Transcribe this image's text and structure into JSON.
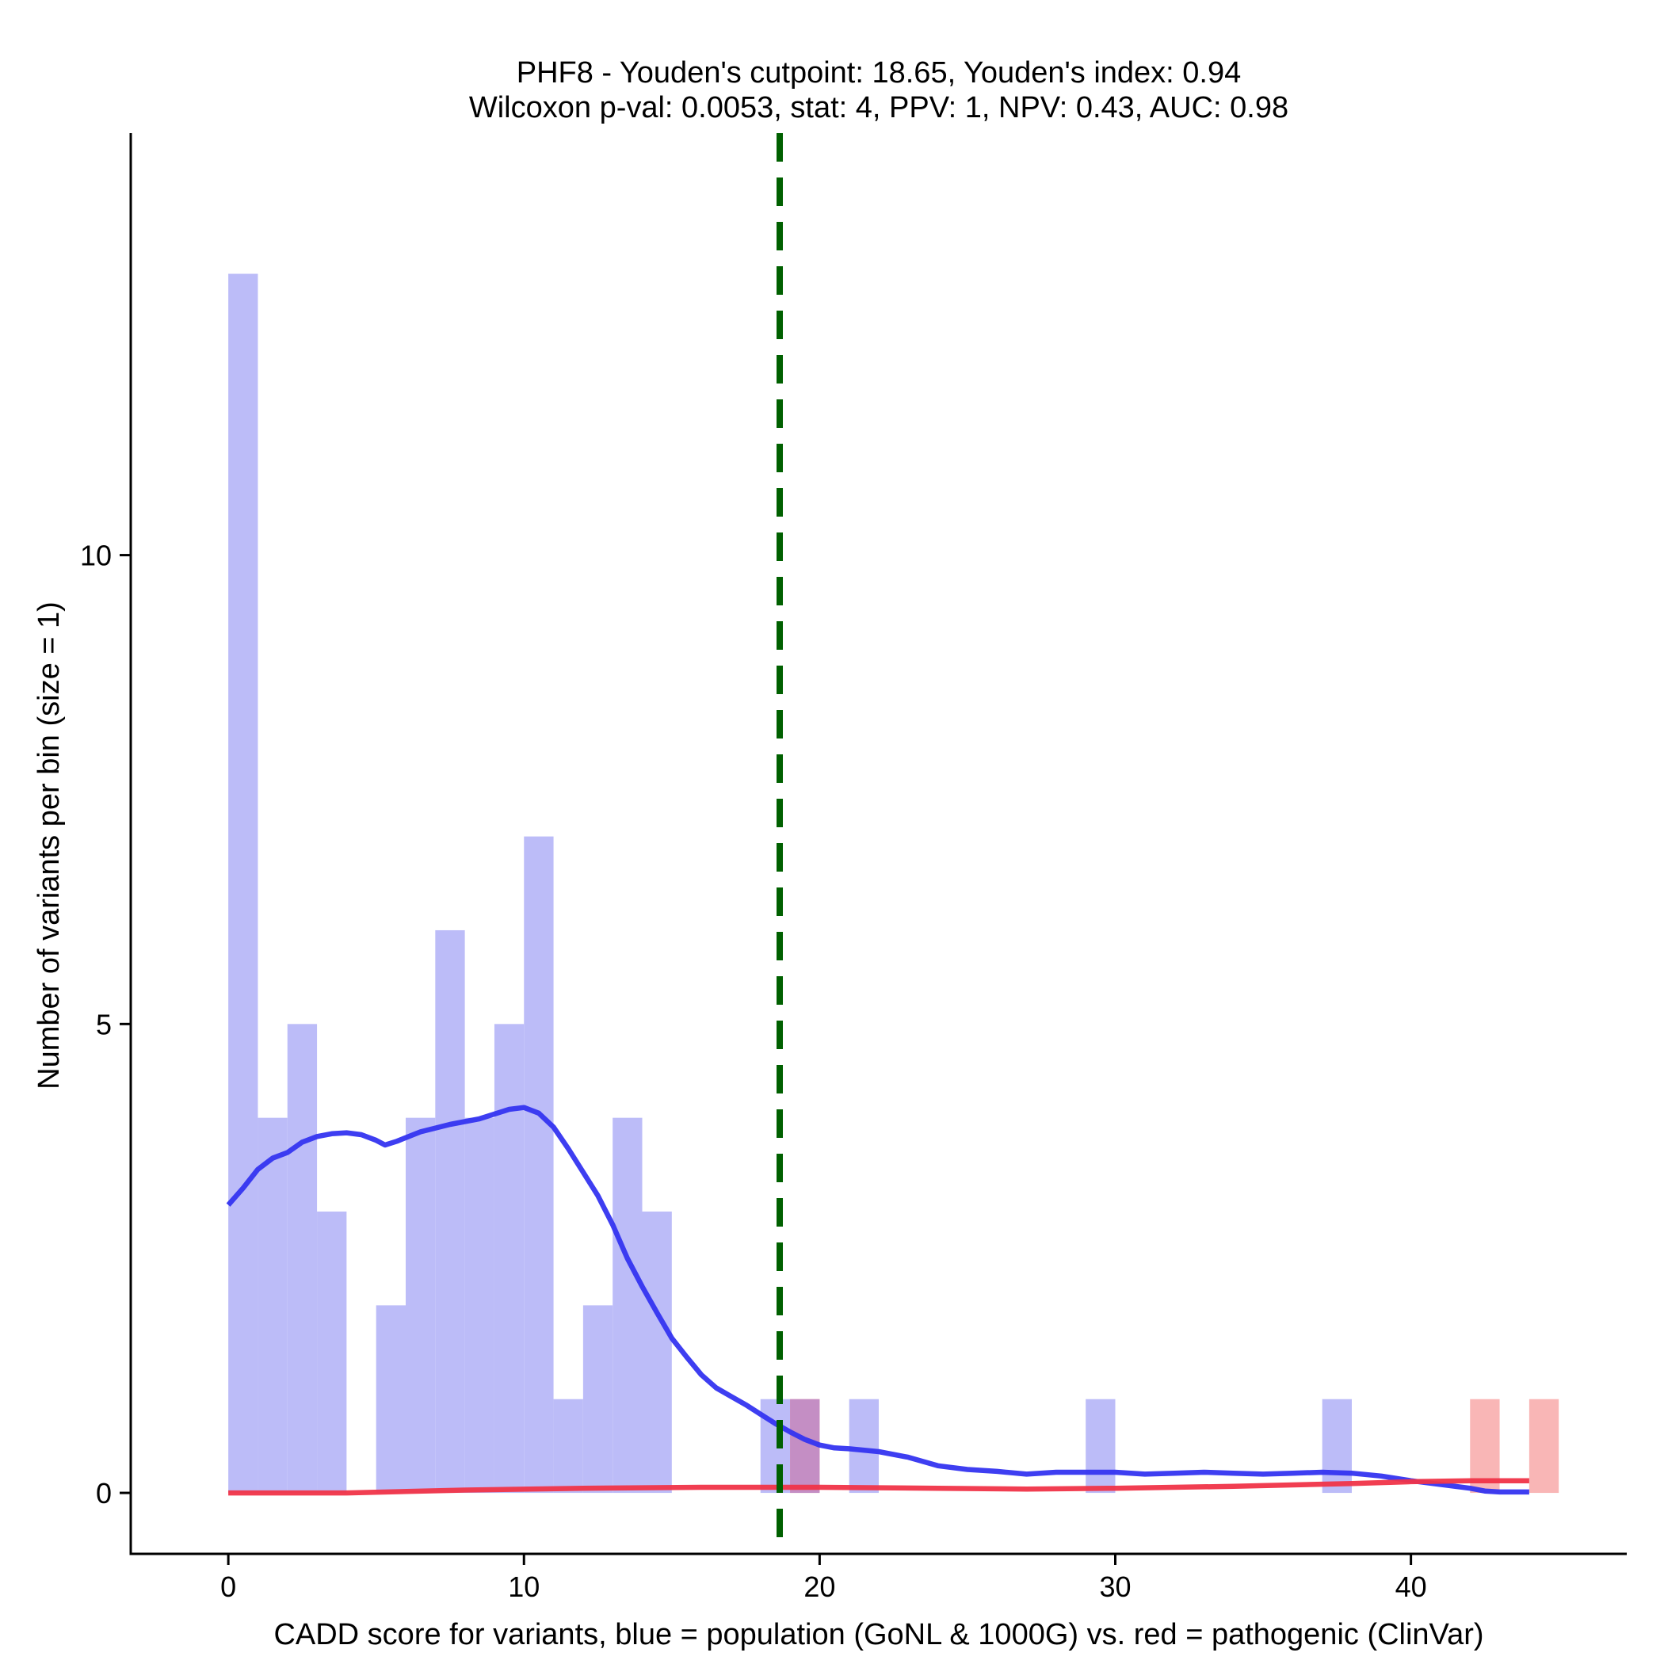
{
  "chart_data": {
    "type": "histogram",
    "title_line1": "PHF8 - Youden's cutpoint: 18.65, Youden's index: 0.94",
    "title_line2": "Wilcoxon p-val: 0.0053, stat: 4, PPV: 1, NPV: 0.43, AUC: 0.98",
    "xlabel": "CADD score for variants, blue = population (GoNL & 1000G) vs. red = pathogenic (ClinVar)",
    "ylabel": "Number of variants per bin (size = 1)",
    "xlim": [
      -3.3,
      47.3
    ],
    "ylim": [
      -0.65,
      14.5
    ],
    "x_ticks": [
      0,
      10,
      20,
      30,
      40
    ],
    "x_tick_labels": [
      "0",
      "10",
      "20",
      "30",
      "40"
    ],
    "y_ticks": [
      0,
      5,
      10
    ],
    "y_tick_labels": [
      "0",
      "5",
      "10"
    ],
    "bin_size": 1,
    "cutpoint": 18.65,
    "colors": {
      "population_bar": "#bcbcf8",
      "pathogenic_bar": "#f9b6b6",
      "overlap_bar": "#c48ec4",
      "population_line": "#3434f0",
      "pathogenic_line": "#f03448",
      "cutpoint_line": "#006000",
      "axis": "#000000"
    },
    "series": [
      {
        "name": "population (GoNL & 1000G)",
        "bins": [
          {
            "x": 0,
            "count": 13
          },
          {
            "x": 1,
            "count": 4
          },
          {
            "x": 2,
            "count": 5
          },
          {
            "x": 3,
            "count": 3
          },
          {
            "x": 5,
            "count": 2
          },
          {
            "x": 6,
            "count": 4
          },
          {
            "x": 7,
            "count": 6
          },
          {
            "x": 8,
            "count": 4
          },
          {
            "x": 9,
            "count": 5
          },
          {
            "x": 10,
            "count": 7
          },
          {
            "x": 11,
            "count": 1
          },
          {
            "x": 12,
            "count": 2
          },
          {
            "x": 13,
            "count": 4
          },
          {
            "x": 14,
            "count": 3
          },
          {
            "x": 18,
            "count": 1
          },
          {
            "x": 21,
            "count": 1
          },
          {
            "x": 29,
            "count": 1
          },
          {
            "x": 37,
            "count": 1
          }
        ]
      },
      {
        "name": "pathogenic (ClinVar)",
        "bins": [
          {
            "x": 19,
            "count": 1
          },
          {
            "x": 42,
            "count": 1
          },
          {
            "x": 44,
            "count": 1
          }
        ]
      }
    ],
    "density_lines": [
      {
        "name": "population density",
        "points": [
          [
            0,
            3.07
          ],
          [
            0.5,
            3.25
          ],
          [
            1,
            3.45
          ],
          [
            1.5,
            3.57
          ],
          [
            2,
            3.63
          ],
          [
            2.5,
            3.74
          ],
          [
            3,
            3.8
          ],
          [
            3.5,
            3.83
          ],
          [
            4,
            3.84
          ],
          [
            4.5,
            3.82
          ],
          [
            5,
            3.76
          ],
          [
            5.3,
            3.71
          ],
          [
            5.7,
            3.75
          ],
          [
            6.5,
            3.85
          ],
          [
            7.5,
            3.93
          ],
          [
            8.5,
            3.99
          ],
          [
            9.5,
            4.09
          ],
          [
            10,
            4.11
          ],
          [
            10.5,
            4.05
          ],
          [
            11,
            3.9
          ],
          [
            11.5,
            3.67
          ],
          [
            12,
            3.42
          ],
          [
            12.5,
            3.17
          ],
          [
            13,
            2.86
          ],
          [
            13.5,
            2.5
          ],
          [
            14,
            2.2
          ],
          [
            14.5,
            1.92
          ],
          [
            15,
            1.65
          ],
          [
            15.5,
            1.45
          ],
          [
            16,
            1.26
          ],
          [
            16.5,
            1.12
          ],
          [
            17,
            1.03
          ],
          [
            17.5,
            0.94
          ],
          [
            18,
            0.84
          ],
          [
            18.5,
            0.74
          ],
          [
            19,
            0.65
          ],
          [
            19.5,
            0.57
          ],
          [
            20,
            0.51
          ],
          [
            20.5,
            0.48
          ],
          [
            21,
            0.47
          ],
          [
            22,
            0.44
          ],
          [
            23,
            0.38
          ],
          [
            24,
            0.29
          ],
          [
            25,
            0.25
          ],
          [
            26,
            0.23
          ],
          [
            27,
            0.2
          ],
          [
            28,
            0.22
          ],
          [
            29,
            0.22
          ],
          [
            30,
            0.22
          ],
          [
            31,
            0.2
          ],
          [
            32,
            0.21
          ],
          [
            33,
            0.22
          ],
          [
            34,
            0.21
          ],
          [
            35,
            0.2
          ],
          [
            36,
            0.21
          ],
          [
            37,
            0.22
          ],
          [
            38,
            0.21
          ],
          [
            39,
            0.18
          ],
          [
            40,
            0.13
          ],
          [
            41,
            0.09
          ],
          [
            42,
            0.05
          ],
          [
            42.5,
            0.02
          ],
          [
            43,
            0.01
          ],
          [
            44,
            0.01
          ]
        ]
      },
      {
        "name": "pathogenic density",
        "points": [
          [
            0,
            0.0
          ],
          [
            4,
            0.0
          ],
          [
            8,
            0.03
          ],
          [
            12,
            0.05
          ],
          [
            16,
            0.06
          ],
          [
            20,
            0.06
          ],
          [
            24,
            0.05
          ],
          [
            27,
            0.04
          ],
          [
            30,
            0.05
          ],
          [
            34,
            0.07
          ],
          [
            38,
            0.1
          ],
          [
            40,
            0.12
          ],
          [
            42,
            0.13
          ],
          [
            44,
            0.13
          ]
        ]
      }
    ]
  }
}
